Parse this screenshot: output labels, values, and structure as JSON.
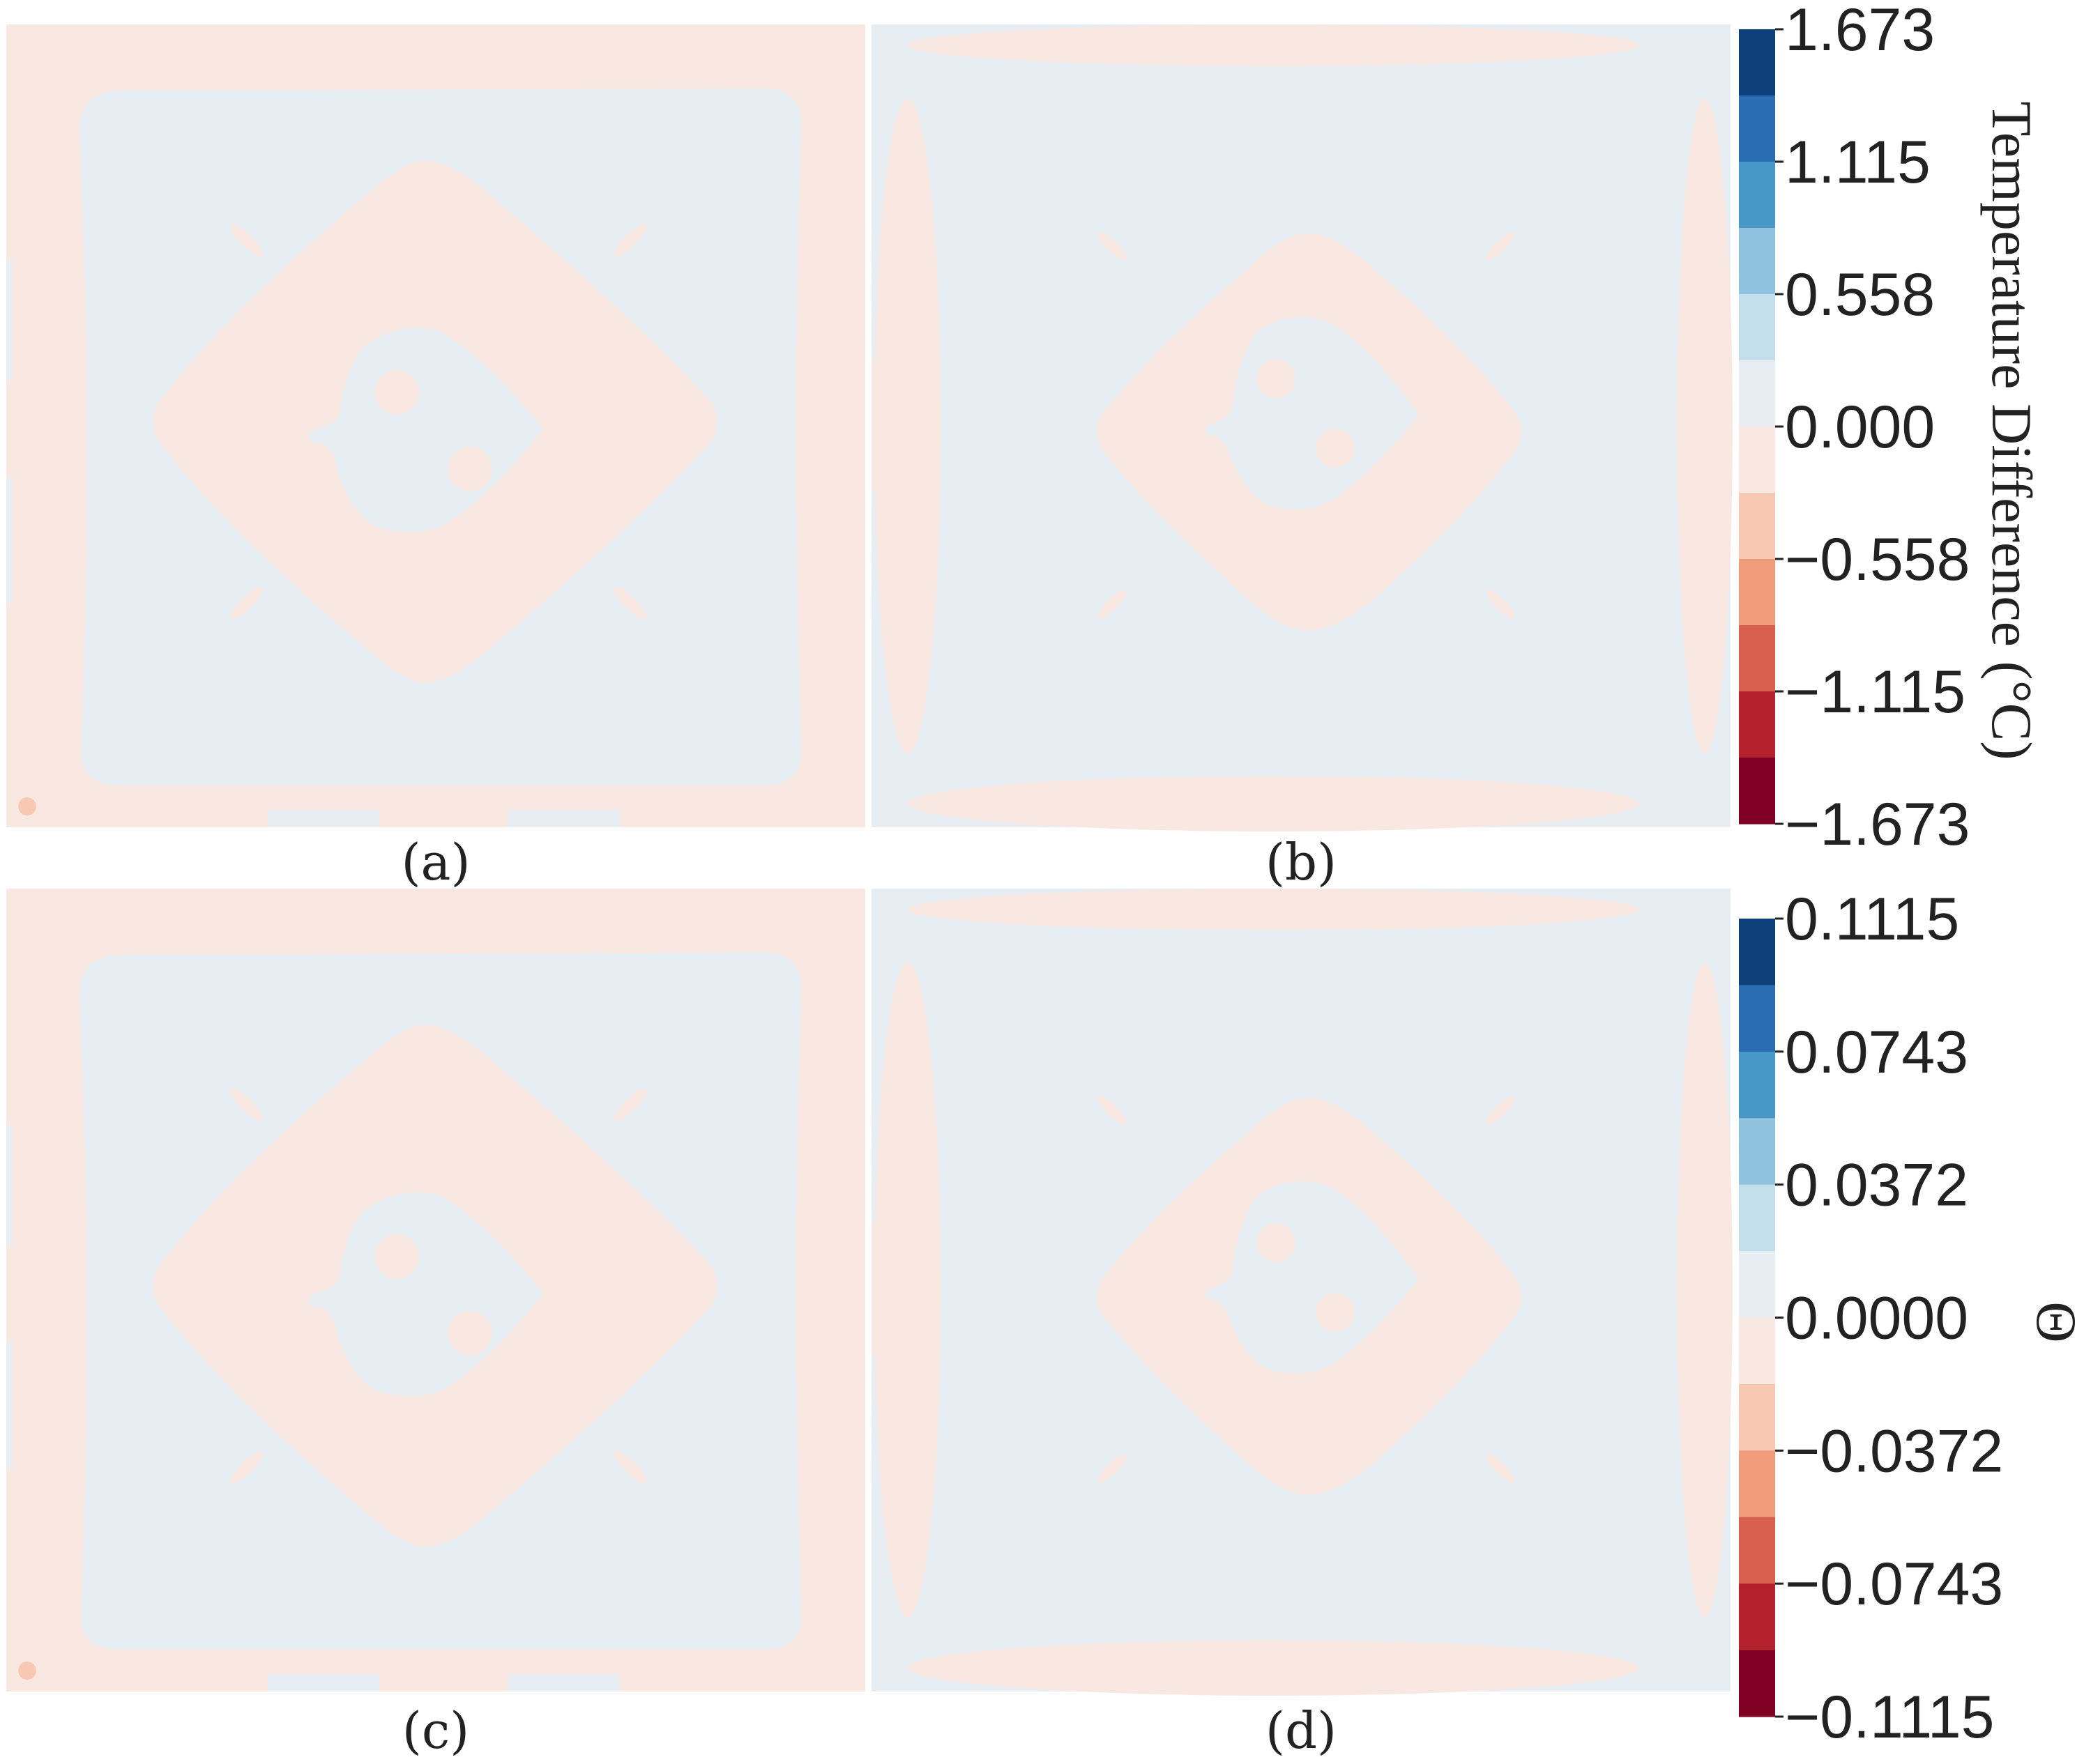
{
  "chart_data": [
    {
      "type": "heatmap",
      "panels": [
        {
          "caption": "(a)",
          "pattern": "ring"
        },
        {
          "caption": "(b)",
          "pattern": "edge-lenses"
        }
      ],
      "colorbar": {
        "title": "Temperature Difference (°C)",
        "ticks": [
          "1.673",
          "1.115",
          "0.558",
          "0.000",
          "−0.558",
          "−1.115",
          "−1.673"
        ],
        "range": [
          -1.673,
          1.673
        ],
        "levels": 12
      }
    },
    {
      "type": "heatmap",
      "panels": [
        {
          "caption": "(c)",
          "pattern": "ring"
        },
        {
          "caption": "(d)",
          "pattern": "edge-lenses"
        }
      ],
      "colorbar": {
        "title": "Θ",
        "ticks": [
          "0.1115",
          "0.0743",
          "0.0372",
          "0.0000",
          "−0.0372",
          "−0.0743",
          "−0.1115"
        ],
        "range": [
          -0.1115,
          0.1115
        ],
        "levels": 12
      }
    }
  ],
  "colors": {
    "positive_near_zero": "#e6eef4",
    "negative_near_zero": "#f9e8e2",
    "negative_small": "#f8c8b3",
    "colormap": [
      "#0d3f7a",
      "#2b6db2",
      "#4798c6",
      "#8fc2dd",
      "#c4ddeb",
      "#e6eef4",
      "#f9e8e2",
      "#f8c8b3",
      "#f09c7b",
      "#d6604d",
      "#b4222e",
      "#7f0023"
    ]
  }
}
